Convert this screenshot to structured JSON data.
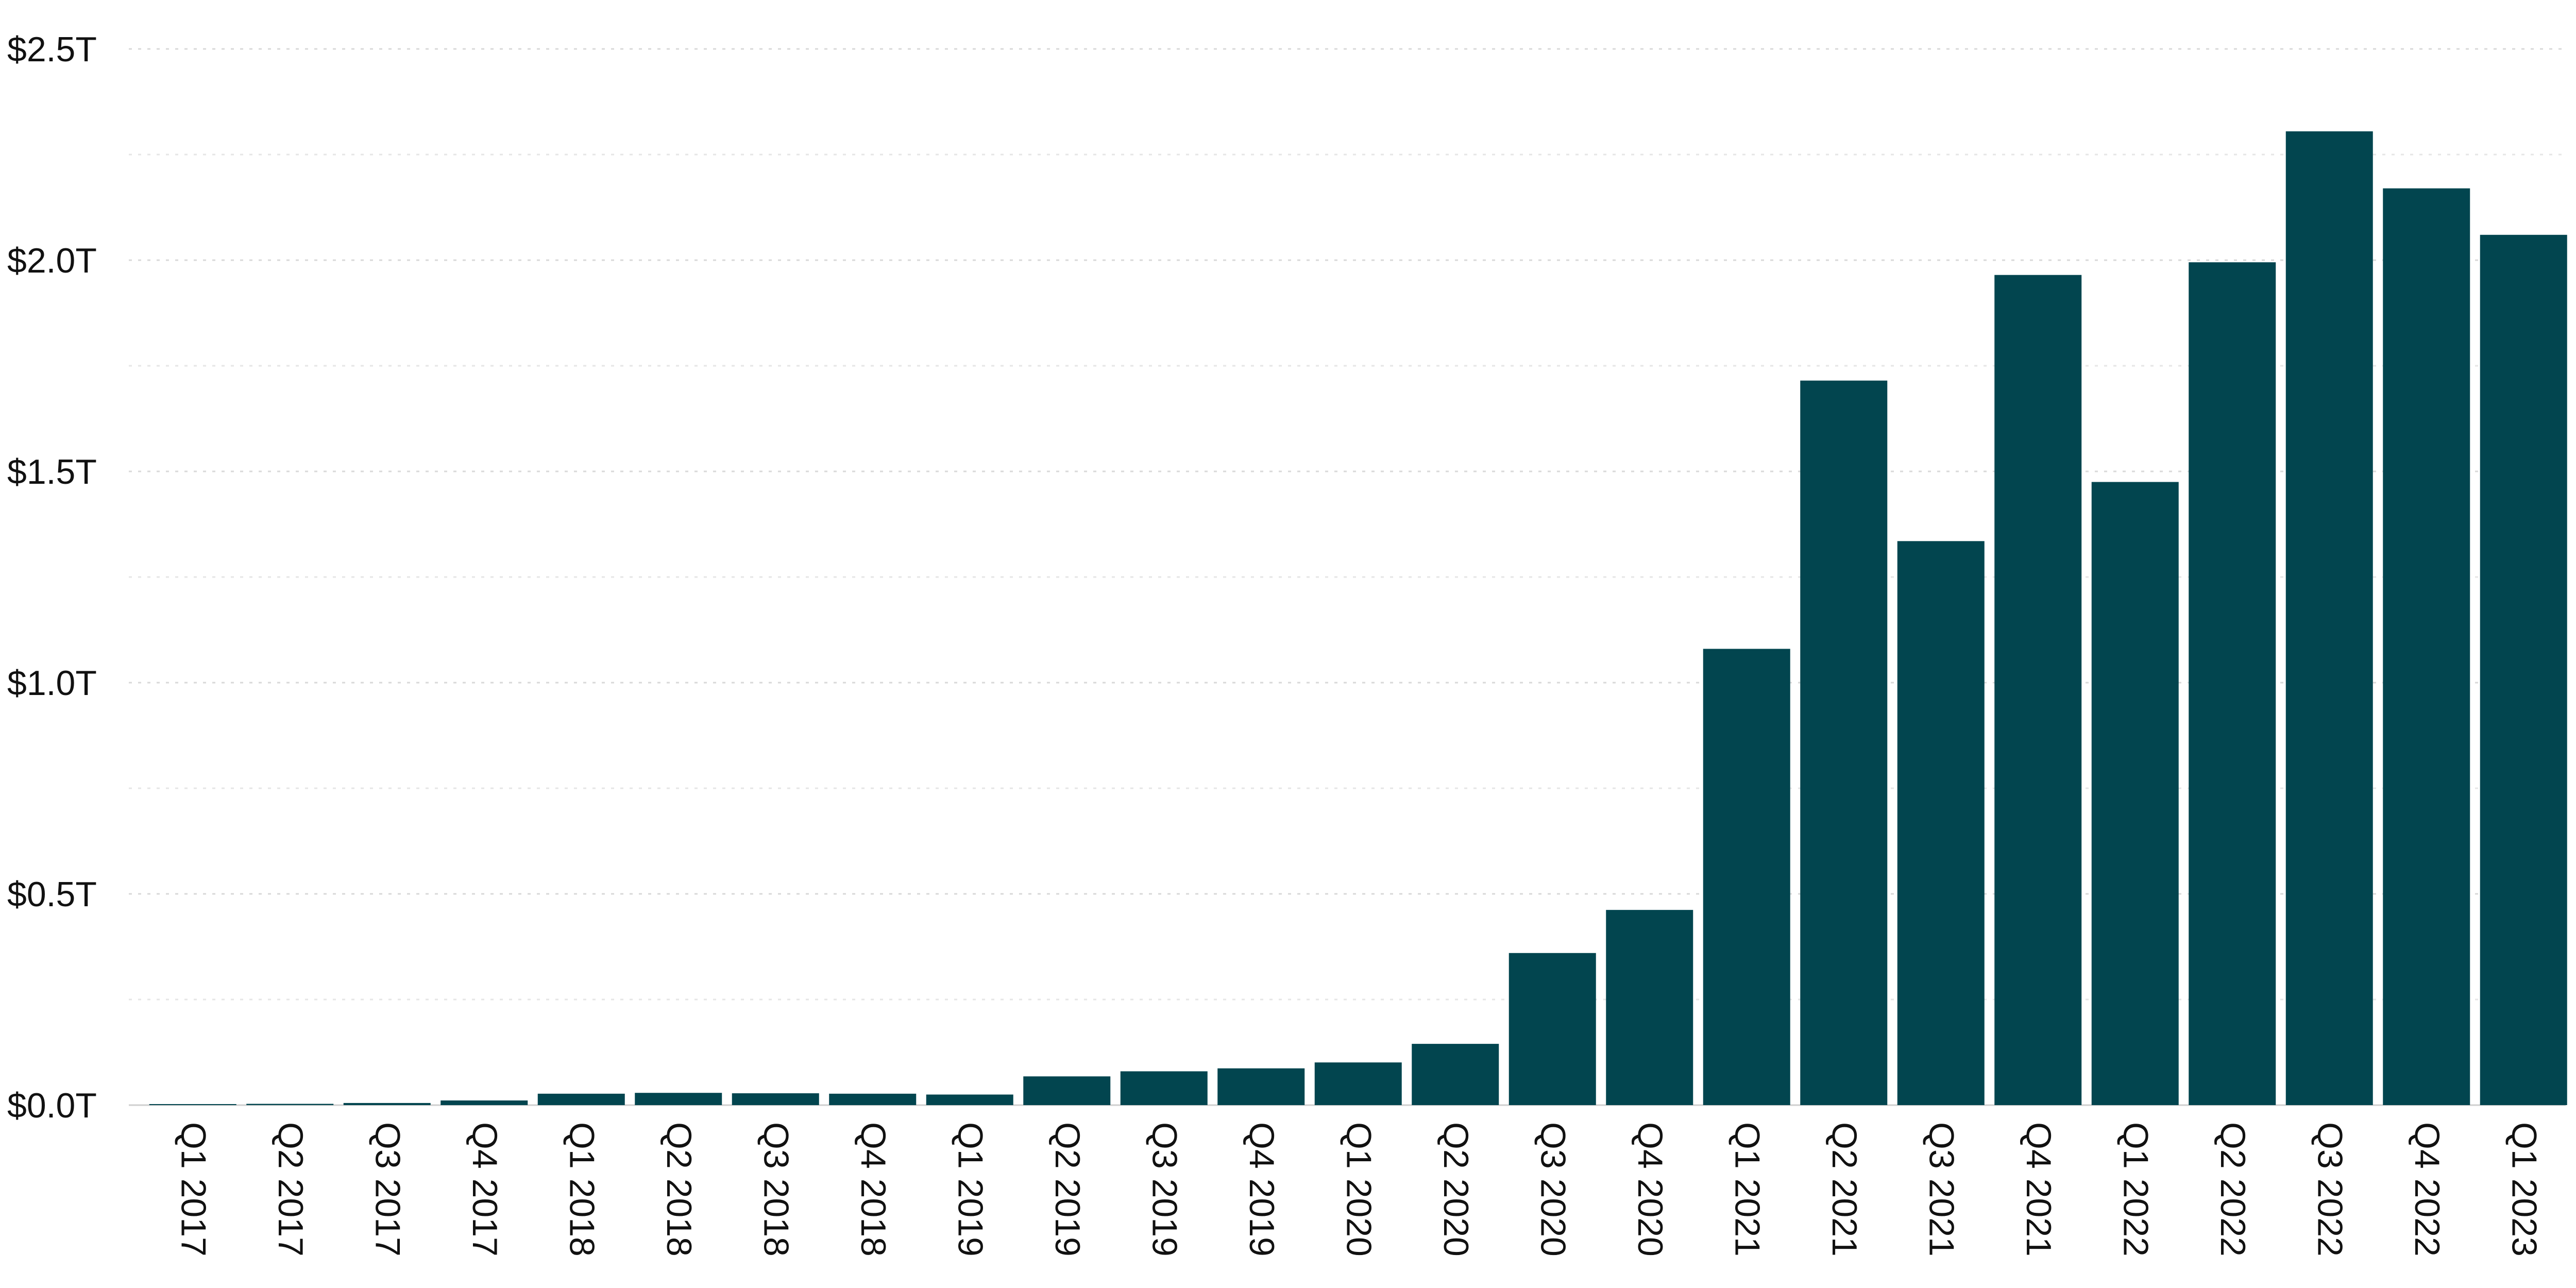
{
  "chart_data": {
    "type": "bar",
    "title": "",
    "xlabel": "",
    "ylabel": "",
    "categories": [
      "Q1 2017",
      "Q2 2017",
      "Q3 2017",
      "Q4 2017",
      "Q1 2018",
      "Q2 2018",
      "Q3 2018",
      "Q4 2018",
      "Q1 2019",
      "Q2 2019",
      "Q3 2019",
      "Q4 2019",
      "Q1 2020",
      "Q2 2020",
      "Q3 2020",
      "Q4 2020",
      "Q1 2021",
      "Q2 2021",
      "Q3 2021",
      "Q4 2021",
      "Q1 2022",
      "Q2 2022",
      "Q3 2022",
      "Q4 2022",
      "Q1 2023"
    ],
    "values": [
      0.001,
      0.003,
      0.005,
      0.011,
      0.027,
      0.029,
      0.028,
      0.027,
      0.025,
      0.068,
      0.08,
      0.087,
      0.101,
      0.145,
      0.36,
      0.462,
      1.08,
      1.715,
      1.335,
      1.965,
      1.475,
      1.995,
      2.305,
      2.17,
      2.06
    ],
    "unit": "T",
    "ylim": [
      0,
      2.5
    ],
    "yticks": [
      {
        "value": 0.0,
        "label": "$0.0T"
      },
      {
        "value": 0.5,
        "label": "$0.5T"
      },
      {
        "value": 1.0,
        "label": "$1.0T"
      },
      {
        "value": 1.5,
        "label": "$1.5T"
      },
      {
        "value": 2.0,
        "label": "$2.0T"
      },
      {
        "value": 2.5,
        "label": "$2.5T"
      }
    ],
    "minor_gridlines": [
      0.25,
      0.75,
      1.25,
      1.75,
      2.25
    ],
    "grid": true,
    "legend": "none",
    "bar_color": "#02454f"
  }
}
